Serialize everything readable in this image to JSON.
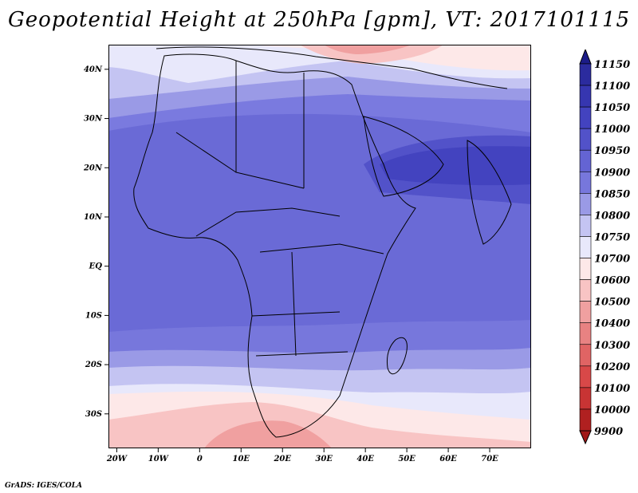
{
  "title": "Geopotential Height at 250hPa [gpm], VT: 2017101115",
  "credit": "GrADS: IGES/COLA",
  "map": {
    "lon_ticks": [
      {
        "lon": -20,
        "label": "20W"
      },
      {
        "lon": -10,
        "label": "10W"
      },
      {
        "lon": 0,
        "label": "0"
      },
      {
        "lon": 10,
        "label": "10E"
      },
      {
        "lon": 20,
        "label": "20E"
      },
      {
        "lon": 30,
        "label": "30E"
      },
      {
        "lon": 40,
        "label": "40E"
      },
      {
        "lon": 50,
        "label": "50E"
      },
      {
        "lon": 60,
        "label": "60E"
      },
      {
        "lon": 70,
        "label": "70E"
      }
    ],
    "lat_ticks": [
      {
        "lat": 40,
        "label": "40N"
      },
      {
        "lat": 30,
        "label": "30N"
      },
      {
        "lat": 20,
        "label": "20N"
      },
      {
        "lat": 10,
        "label": "10N"
      },
      {
        "lat": 0,
        "label": "EQ"
      },
      {
        "lat": -10,
        "label": "10S"
      },
      {
        "lat": -20,
        "label": "20S"
      },
      {
        "lat": -30,
        "label": "30S"
      }
    ],
    "lon_range": [
      -22,
      80
    ],
    "lat_range": [
      -37,
      45
    ]
  },
  "colorbar": {
    "levels": [
      {
        "label": "11150",
        "color": "#1c1c88"
      },
      {
        "label": "11100",
        "color": "#2b2b9e"
      },
      {
        "label": "11050",
        "color": "#3636b0"
      },
      {
        "label": "11000",
        "color": "#4343bf"
      },
      {
        "label": "10950",
        "color": "#5252c9"
      },
      {
        "label": "10900",
        "color": "#6464d3"
      },
      {
        "label": "10850",
        "color": "#7777dc"
      },
      {
        "label": "10800",
        "color": "#9a9ae6"
      },
      {
        "label": "10750",
        "color": "#c4c4f2"
      },
      {
        "label": "10700",
        "color": "#e8e8fb"
      },
      {
        "label": "10600",
        "color": "#fde8e8"
      },
      {
        "label": "10500",
        "color": "#f8c4c4"
      },
      {
        "label": "10400",
        "color": "#f0a0a0"
      },
      {
        "label": "10300",
        "color": "#e88282"
      },
      {
        "label": "10200",
        "color": "#e06464"
      },
      {
        "label": "10100",
        "color": "#d84848"
      },
      {
        "label": "10000",
        "color": "#c83434"
      },
      {
        "label": "9900",
        "color": "#b02020"
      }
    ],
    "top_arrow_color": "#1c1c88",
    "bottom_arrow_color": "#a01818"
  }
}
